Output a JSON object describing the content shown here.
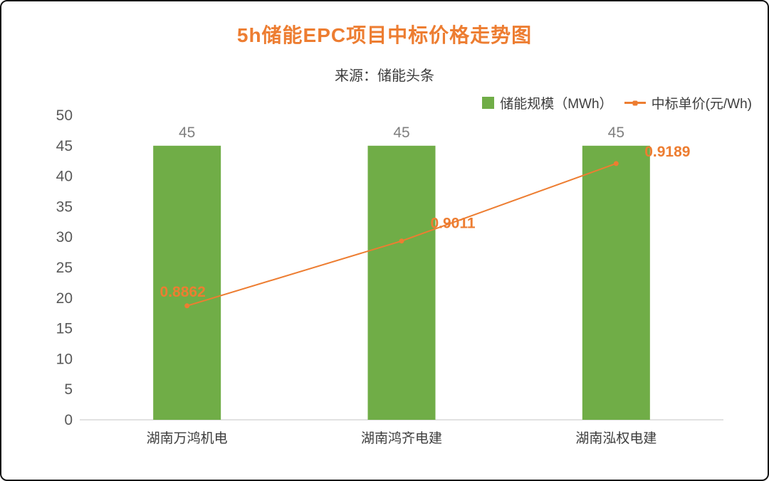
{
  "colors": {
    "bar": "#70AD47",
    "line": "#ED7D31",
    "title": "#ED7D31",
    "axis": "#D9D9D9",
    "tick_text": "#595959",
    "bar_label_text": "#7F7F7F",
    "category_text": "#3d3d3d"
  },
  "chart_data": {
    "type": "bar",
    "title": "5h储能EPC项目中标价格走势图",
    "subtitle": "来源：储能头条",
    "categories": [
      "湖南万鸿机电",
      "湖南鸿齐电建",
      "湖南泓权电建"
    ],
    "series": [
      {
        "name": "储能规模（MWh）",
        "type": "bar",
        "axis": "primary",
        "values": [
          45,
          45,
          45
        ],
        "data_labels": [
          "45",
          "45",
          "45"
        ]
      },
      {
        "name": "中标单价(元/Wh)",
        "type": "line",
        "axis": "secondary",
        "values": [
          0.8862,
          0.9011,
          0.9189
        ],
        "data_labels": [
          "0.8862",
          "0.9011",
          "0.9189"
        ]
      }
    ],
    "ylabel": "",
    "xlabel": "",
    "ylim": [
      0,
      50
    ],
    "y_ticks": [
      0,
      5,
      10,
      15,
      20,
      25,
      30,
      35,
      40,
      45,
      50
    ],
    "y2lim": [
      0.86,
      0.93
    ],
    "grid": false,
    "legend_position": "top-right"
  }
}
